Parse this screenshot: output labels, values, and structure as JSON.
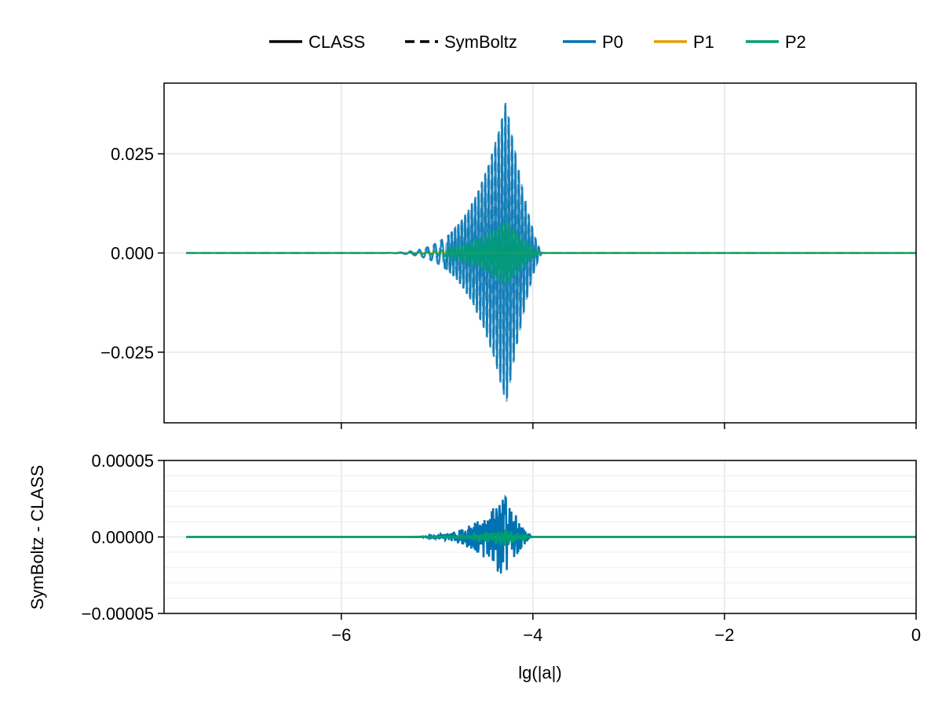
{
  "legend": {
    "placement": "top-center",
    "entries": [
      {
        "label": "CLASS",
        "color": "#000000",
        "style": "solid"
      },
      {
        "label": "SymBoltz",
        "color": "#000000",
        "style": "dashed"
      },
      {
        "label": "P0",
        "color": "#0072b2",
        "style": "solid"
      },
      {
        "label": "P1",
        "color": "#e69f00",
        "style": "solid"
      },
      {
        "label": "P2",
        "color": "#009e73",
        "style": "solid"
      }
    ]
  },
  "chart_data": [
    {
      "type": "line",
      "panel": "top",
      "xlim": [
        -7.85,
        0
      ],
      "ylim": [
        -0.0428,
        0.0428
      ],
      "yticks": [
        -0.025,
        0.0,
        0.025
      ],
      "ytick_labels": [
        "−0.025",
        "0.000",
        "0.025"
      ],
      "xticks": [
        -6,
        -4,
        -2,
        0
      ],
      "grid": true,
      "description_of_series": "Oscillating perturbations vs lg(|a|); CLASS solid, SymBoltz dashed",
      "series": [
        {
          "name": "P0",
          "color": "#0072b2",
          "envelope": {
            "center": -4.28,
            "peak": 0.0385,
            "start": -5.8,
            "end": -3.9
          },
          "osc_period": 0.035
        },
        {
          "name": "P1",
          "color": "#e69f00",
          "envelope": {
            "center": -4.28,
            "peak": 0.0,
            "start": -5.8,
            "end": -3.9
          },
          "osc_period": 0.035
        },
        {
          "name": "P2",
          "color": "#009e73",
          "envelope": {
            "center": -4.28,
            "peak": 0.0082,
            "start": -5.8,
            "end": -3.9
          },
          "osc_period": 0.035
        }
      ]
    },
    {
      "type": "line",
      "panel": "bottom",
      "xlabel": "lg(|a|)",
      "ylabel": "SymBoltz - CLASS",
      "xlim": [
        -7.85,
        0
      ],
      "ylim": [
        -5e-05,
        5e-05
      ],
      "yticks": [
        -5e-05,
        0.0,
        5e-05
      ],
      "ytick_labels": [
        "−0.00005",
        "0.00000",
        "0.00005"
      ],
      "xticks": [
        -6,
        -4,
        -2,
        0
      ],
      "xtick_labels": [
        "−6",
        "−4",
        "−2",
        "0"
      ],
      "grid": true,
      "series": [
        {
          "name": "P0",
          "color": "#0072b2",
          "envelope": {
            "center": -4.3,
            "peak": 3e-05,
            "start": -5.6,
            "end": -4.0
          }
        },
        {
          "name": "P1",
          "color": "#e69f00",
          "envelope": {
            "center": -4.3,
            "peak": 0.0,
            "start": -5.6,
            "end": -4.0
          }
        },
        {
          "name": "P2",
          "color": "#009e73",
          "envelope": {
            "center": -4.3,
            "peak": 6e-06,
            "start": -5.6,
            "end": -4.0
          }
        }
      ]
    }
  ]
}
